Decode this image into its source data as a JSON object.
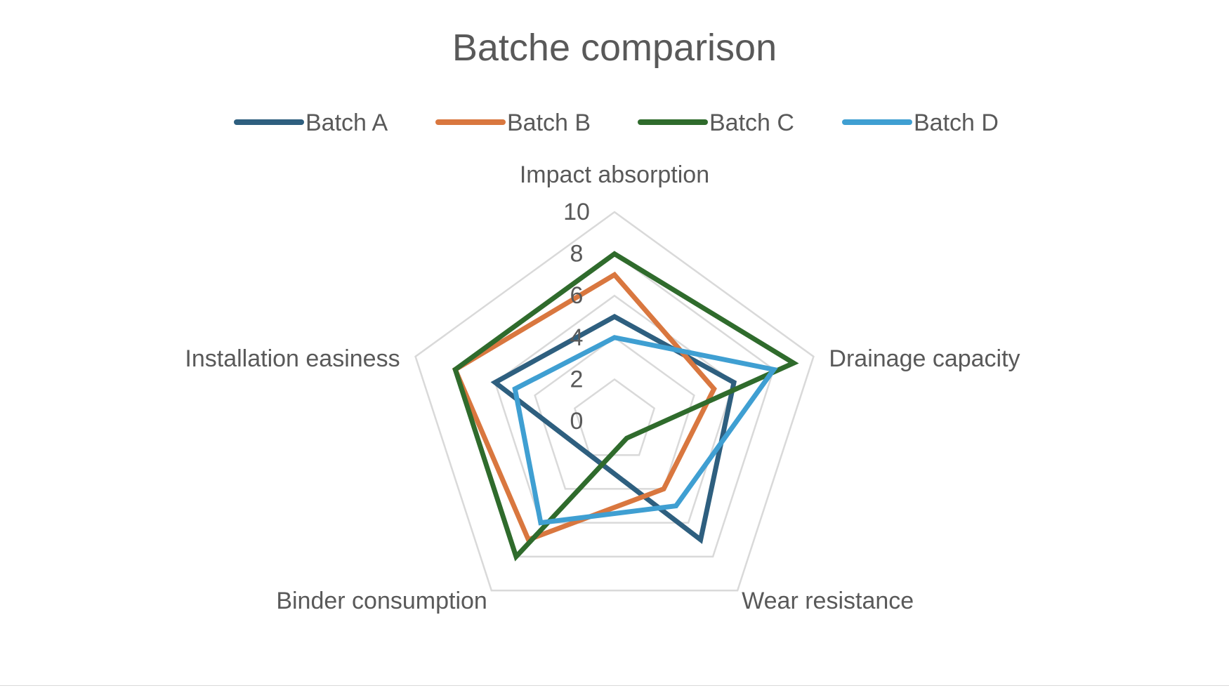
{
  "chart_data": {
    "type": "radar",
    "title": "Batche comparison",
    "categories": [
      "Impact absorption",
      "Drainage capacity",
      "Wear resistance",
      "Binder consumption",
      "Installation easiness"
    ],
    "axis": {
      "min": 0,
      "max": 10,
      "step": 2,
      "ticks": [
        "0",
        "2",
        "4",
        "6",
        "8",
        "10"
      ]
    },
    "grid": true,
    "legend_position": "top",
    "series": [
      {
        "name": "Batch A",
        "color": "#2e5f7f",
        "values": [
          5,
          6,
          7,
          2,
          6
        ]
      },
      {
        "name": "Batch B",
        "color": "#d9773f",
        "values": [
          7,
          5,
          4,
          7,
          8
        ]
      },
      {
        "name": "Batch C",
        "color": "#2f6b2c",
        "values": [
          8,
          9,
          1,
          8,
          8
        ]
      },
      {
        "name": "Batch D",
        "color": "#3f9fd2",
        "values": [
          4,
          8,
          5,
          6,
          5
        ]
      }
    ],
    "grid_color": "#d9d9d9"
  }
}
